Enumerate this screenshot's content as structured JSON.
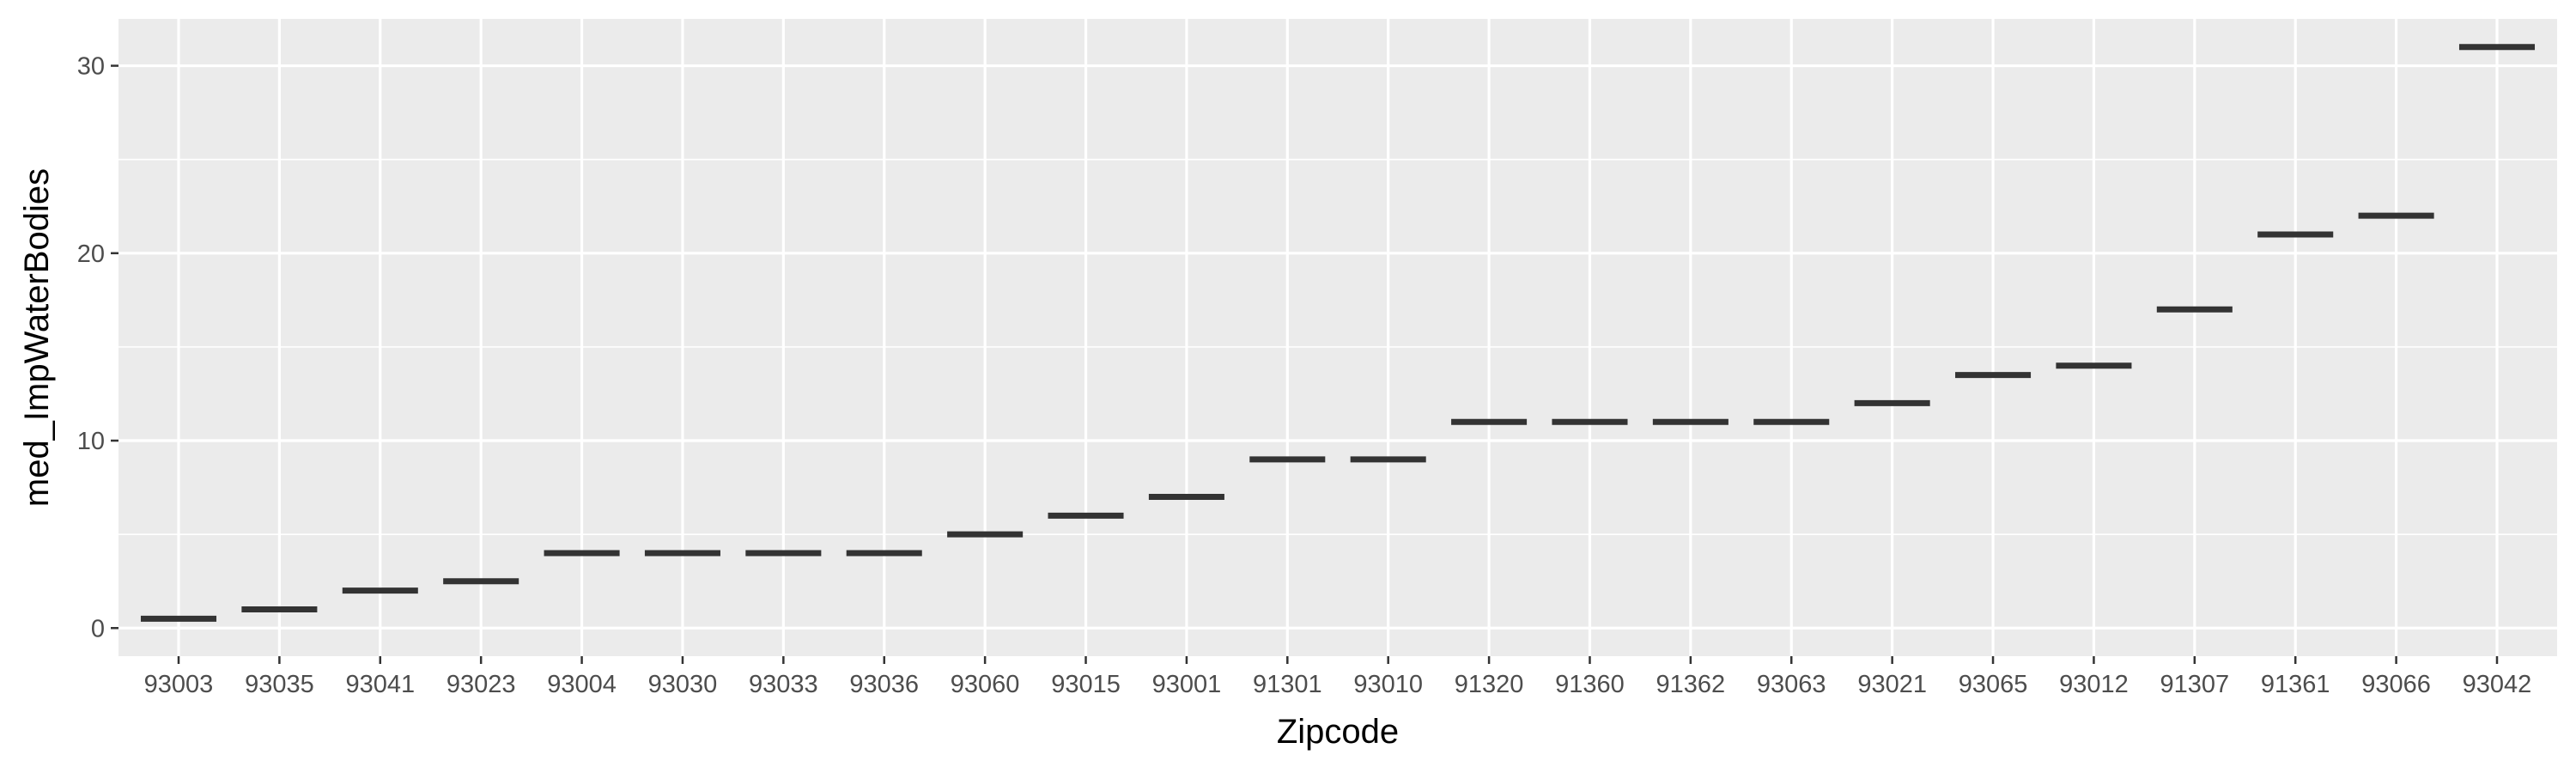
{
  "chart_data": {
    "type": "boxplot",
    "xlabel": "Zipcode",
    "ylabel": "med_ImpWaterBodies",
    "categories": [
      "93003",
      "93035",
      "93041",
      "93023",
      "93004",
      "93030",
      "93033",
      "93036",
      "93060",
      "93015",
      "93001",
      "91301",
      "93010",
      "91320",
      "91360",
      "91362",
      "93063",
      "93021",
      "93065",
      "93012",
      "91307",
      "91361",
      "93066",
      "93042"
    ],
    "values": [
      0.5,
      1,
      2,
      2.5,
      4,
      4,
      4,
      4,
      5,
      6,
      7,
      9,
      9,
      11,
      11,
      11,
      11,
      12,
      13.5,
      14,
      17,
      21,
      22,
      31
    ],
    "ylim": [
      -1.5,
      32.5
    ],
    "yticks": [
      0,
      10,
      20,
      30
    ],
    "grid": true,
    "colors": {
      "panel": "#ebebeb",
      "grid": "#ffffff",
      "mark": "#333333",
      "tick_text": "#4d4d4d",
      "title_text": "#000000"
    }
  }
}
